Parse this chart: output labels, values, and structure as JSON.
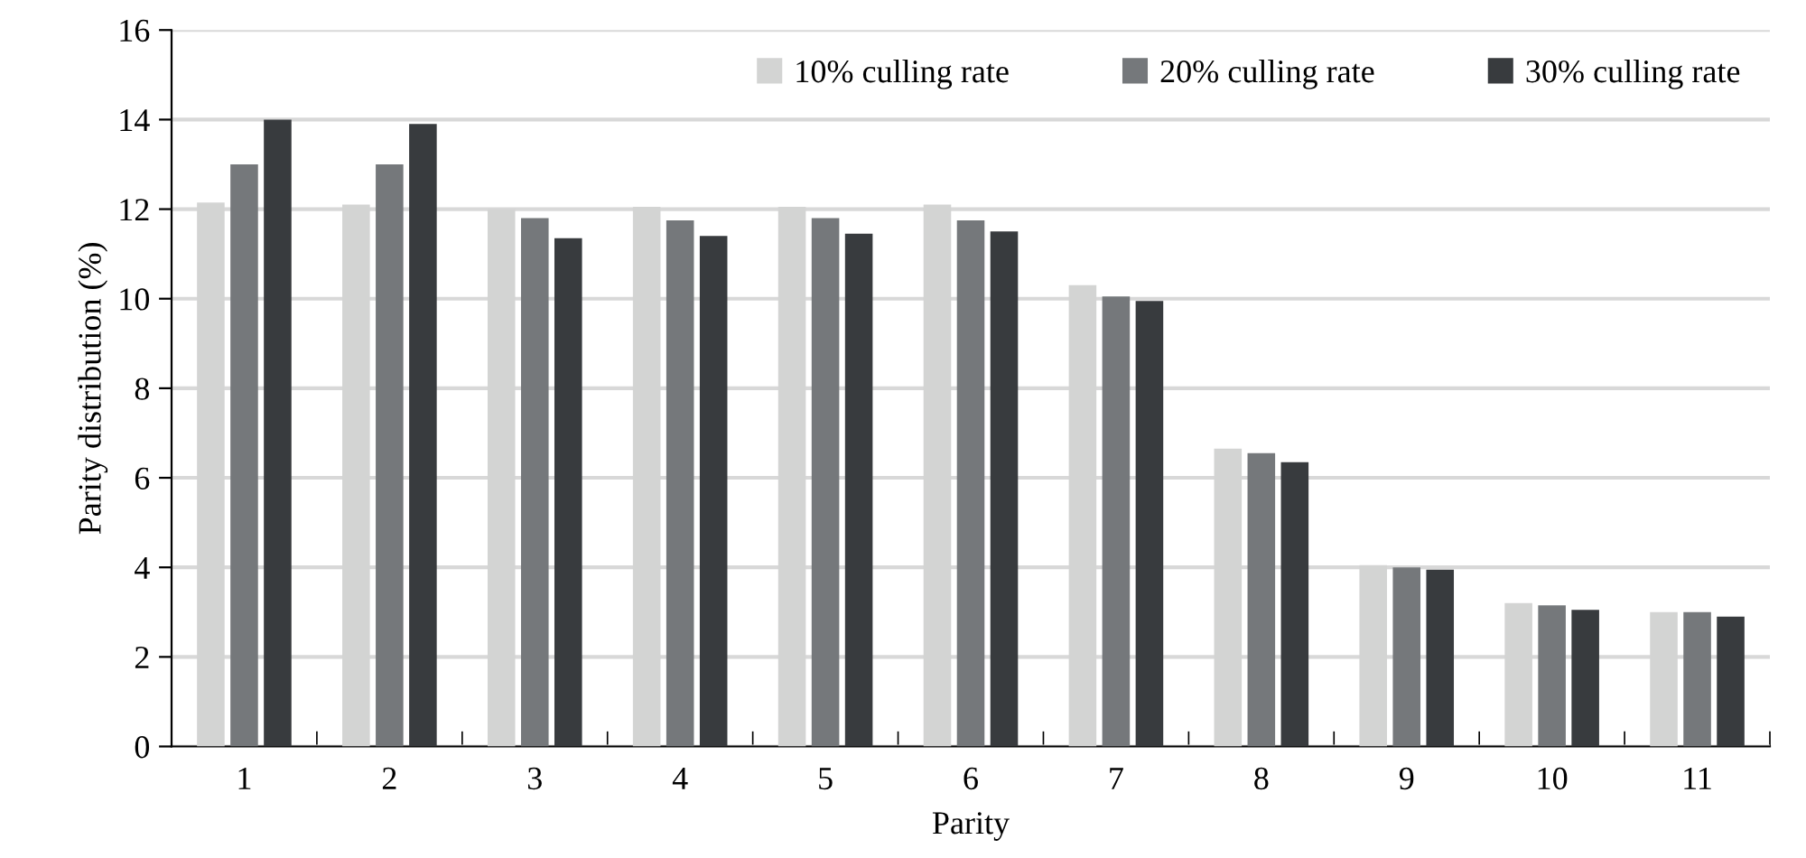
{
  "chart_data": {
    "type": "bar",
    "xlabel": "Parity",
    "ylabel": "Parity distribution (%)",
    "categories": [
      "1",
      "2",
      "3",
      "4",
      "5",
      "6",
      "7",
      "8",
      "9",
      "10",
      "11"
    ],
    "series": [
      {
        "name": "10% culling rate",
        "color": "#d3d4d3",
        "values": [
          12.15,
          12.1,
          12.0,
          12.05,
          12.05,
          12.1,
          10.3,
          6.65,
          4.05,
          3.2,
          3.0
        ]
      },
      {
        "name": "20% culling rate",
        "color": "#75787b",
        "values": [
          13.0,
          13.0,
          11.8,
          11.75,
          11.8,
          11.75,
          10.05,
          6.55,
          4.0,
          3.15,
          3.0
        ]
      },
      {
        "name": "30% culling rate",
        "color": "#383b3e",
        "values": [
          14.0,
          13.9,
          11.35,
          11.4,
          11.45,
          11.5,
          9.95,
          6.35,
          3.95,
          3.05,
          2.9
        ]
      }
    ],
    "ylim": [
      0,
      16
    ],
    "yticks": [
      0,
      2,
      4,
      6,
      8,
      10,
      12,
      14,
      16
    ],
    "grid": "y",
    "legend": "top right"
  }
}
